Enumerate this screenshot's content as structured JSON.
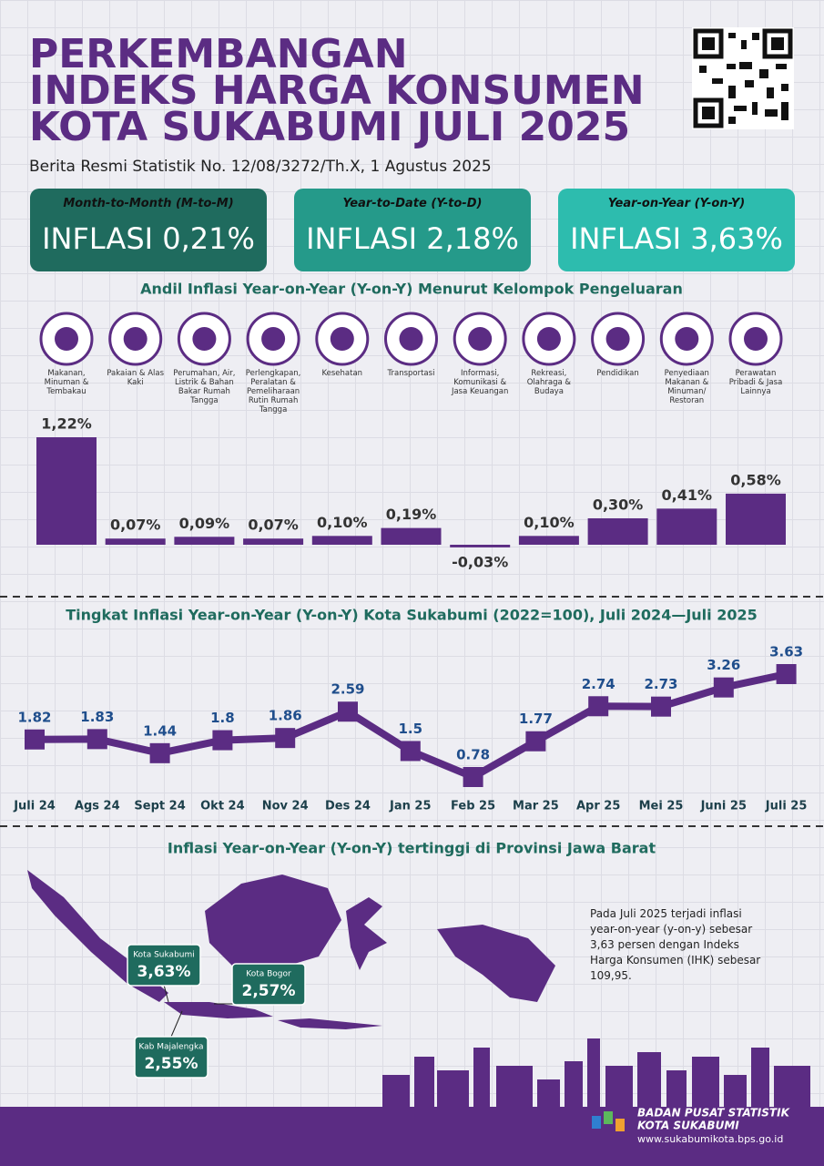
{
  "header": {
    "title_lines": [
      "PERKEMBANGAN",
      "INDEKS HARGA KONSUMEN",
      "KOTA SUKABUMI JULI 2025"
    ],
    "subtitle": "Berita Resmi Statistik No. 12/08/3272/Th.X, 1 Agustus 2025"
  },
  "cards": [
    {
      "label": "Month-to-Month (M-to-M)",
      "value": "INFLASI 0,21%",
      "color": "#1f6b5e"
    },
    {
      "label": "Year-to-Date (Y-to-D)",
      "value": "INFLASI 2,18%",
      "color": "#259a8a"
    },
    {
      "label": "Year-on-Year (Y-on-Y)",
      "value": "INFLASI 3,63%",
      "color": "#2dbcae"
    }
  ],
  "chart_data": [
    {
      "type": "bar",
      "title": "Andil Inflasi Year-on-Year (Y-on-Y) Menurut Kelompok Pengeluaran",
      "categories": [
        "Makanan, Minuman & Tembakau",
        "Pakaian & Alas Kaki",
        "Perumahan, Air, Listrik & Bahan Bakar Rumah Tangga",
        "Perlengkapan, Peralatan & Pemeliharaan Rutin Rumah Tangga",
        "Kesehatan",
        "Transportasi",
        "Informasi, Komunikasi & Jasa Keuangan",
        "Rekreasi, Olahraga & Budaya",
        "Pendidikan",
        "Penyediaan Makanan & Minuman/ Restoran",
        "Perawatan Pribadi & Jasa Lainnya"
      ],
      "values": [
        1.22,
        0.07,
        0.09,
        0.07,
        0.1,
        0.19,
        -0.03,
        0.1,
        0.3,
        0.41,
        0.58
      ],
      "value_labels": [
        "1,22%",
        "0,07%",
        "0,09%",
        "0,07%",
        "0,10%",
        "0,19%",
        "-0,03%",
        "0,10%",
        "0,30%",
        "0,41%",
        "0,58%"
      ],
      "color": "#5b2c83"
    },
    {
      "type": "line",
      "title": "Tingkat Inflasi Year-on-Year (Y-on-Y) Kota Sukabumi (2022=100), Juli 2024—Juli 2025",
      "categories": [
        "Juli 24",
        "Ags 24",
        "Sept 24",
        "Okt 24",
        "Nov 24",
        "Des 24",
        "Jan 25",
        "Feb 25",
        "Mar 25",
        "Apr 25",
        "Mei 25",
        "Juni 25",
        "Juli 25"
      ],
      "values": [
        1.82,
        1.83,
        1.44,
        1.8,
        1.86,
        2.59,
        1.5,
        0.78,
        1.77,
        2.74,
        2.73,
        3.26,
        3.63
      ],
      "color": "#5b2c83"
    }
  ],
  "map": {
    "title": "Inflasi Year-on-Year (Y-on-Y) tertinggi di Provinsi Jawa Barat",
    "callouts": [
      {
        "name": "Kota Sukabumi",
        "value": "3,63%"
      },
      {
        "name": "Kota Bogor",
        "value": "2,57%"
      },
      {
        "name": "Kab Majalengka",
        "value": "2,55%"
      }
    ],
    "note": "Pada Juli 2025 terjadi inflasi year-on-year (y-on-y) sebesar 3,63 persen dengan Indeks Harga Konsumen (IHK) sebesar 109,95."
  },
  "footer": {
    "org": "BADAN PUSAT STATISTIK",
    "city": "KOTA SUKABUMI",
    "url": "www.sukabumikota.bps.go.id"
  }
}
